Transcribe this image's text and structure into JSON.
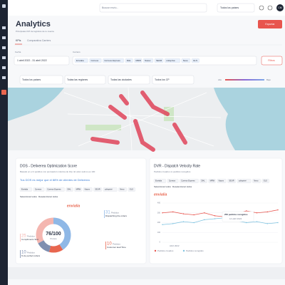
{
  "topbar": {
    "search": "Buscar envío...",
    "country": "Todos los países",
    "avatar": "CM"
  },
  "header": {
    "title": "Analytics",
    "subtitle": "Principales KPI de logística de tu cuenta",
    "export": "Exportar"
  },
  "tabs": [
    "KPIs",
    "Comparativa Carriers"
  ],
  "filters": {
    "date_label": "Fecha",
    "date": "1 abril 2022 - 31 abril 2022",
    "carriers_label": "Carriers",
    "carriers": [
      "Envialia",
      "Correos",
      "Correos Express",
      "DHL",
      "MRW",
      "Nacex",
      "SEUR",
      "colisprivé",
      "Nexo",
      "GLS"
    ],
    "filters_button": "Filtros",
    "selects": [
      "Todos los países",
      "Todas las regiones",
      "Todas las ciudades",
      "Todos los CP"
    ],
    "heat_high": "Alto",
    "heat_low": "Bajo"
  },
  "dos": {
    "title": "DOS - Deliverea Optimization Score",
    "subtitle": "Basado en el 4 pedidos con puntuación máxima de 10p. El valor óptimo es 100",
    "highlight": "Tus DOS es mejor que el 88% de clientes de Deliverea",
    "select_all": "Seleccionar todos",
    "deselect_all": "Deseleccionar todos",
    "logo": "envialia"
  },
  "dvr": {
    "title": "DVR - Dispatch Velocity Rate",
    "subtitle": "Pedidos creados vs pedidos recogidos",
    "select_all": "Seleccionar todos",
    "deselect_all": "Deseleccionar todos",
    "logo": "envialia"
  },
  "chart_data": [
    {
      "type": "donut",
      "score": "76/100",
      "score_caption": "Puntos",
      "unit": "Pedidos",
      "categories": [
        "Dispatching the orders",
        "Customer lead Time",
        "% de perfect orders",
        "Compliments SLA"
      ],
      "values": [
        31,
        10,
        10,
        25
      ],
      "colors": [
        "#8fb8e6",
        "#e8664f",
        "#7f8fb0",
        "#f4b6b0"
      ]
    },
    {
      "type": "line",
      "xlabel": "Abril 2022",
      "categories": [
        null,
        null,
        null,
        null,
        null,
        null,
        null,
        null,
        null,
        null,
        null,
        null
      ],
      "ylim": [
        0,
        400
      ],
      "yticks": [
        0,
        100,
        200,
        300,
        400
      ],
      "grid": true,
      "annotation": {
        "title": "250 pedidos recogidos",
        "date": "14 abril 2022"
      },
      "series": [
        {
          "name": "Pedidos creados",
          "color": "#e8554e",
          "values": [
            300,
            310,
            290,
            280,
            300,
            270,
            260,
            290,
            320,
            300,
            310,
            330
          ]
        },
        {
          "name": "Pedidos recogidos",
          "color": "#7fc3e0",
          "values": [
            180,
            190,
            210,
            200,
            230,
            240,
            250,
            220,
            200,
            210,
            190,
            200
          ]
        }
      ]
    }
  ]
}
